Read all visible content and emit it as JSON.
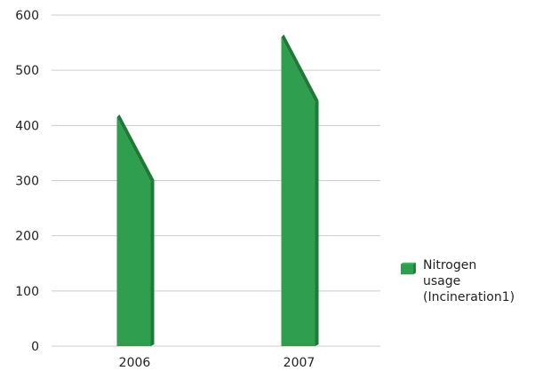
{
  "chart_data": {
    "type": "bar",
    "categories": [
      "2006",
      "2007"
    ],
    "series": [
      {
        "name": "Nitrogen usage (Incineration1)",
        "values": [
          415,
          560
        ],
        "back_values": [
          298,
          442
        ],
        "color": "#2f9f4f",
        "side_color": "#1f7a38"
      }
    ],
    "ylim": [
      0,
      600
    ],
    "yticks": [
      0,
      100,
      200,
      300,
      400,
      500,
      600
    ],
    "grid": true,
    "legend_position": "right"
  },
  "legend": {
    "label": "Nitrogen\nusage\n(Incineration1)"
  }
}
